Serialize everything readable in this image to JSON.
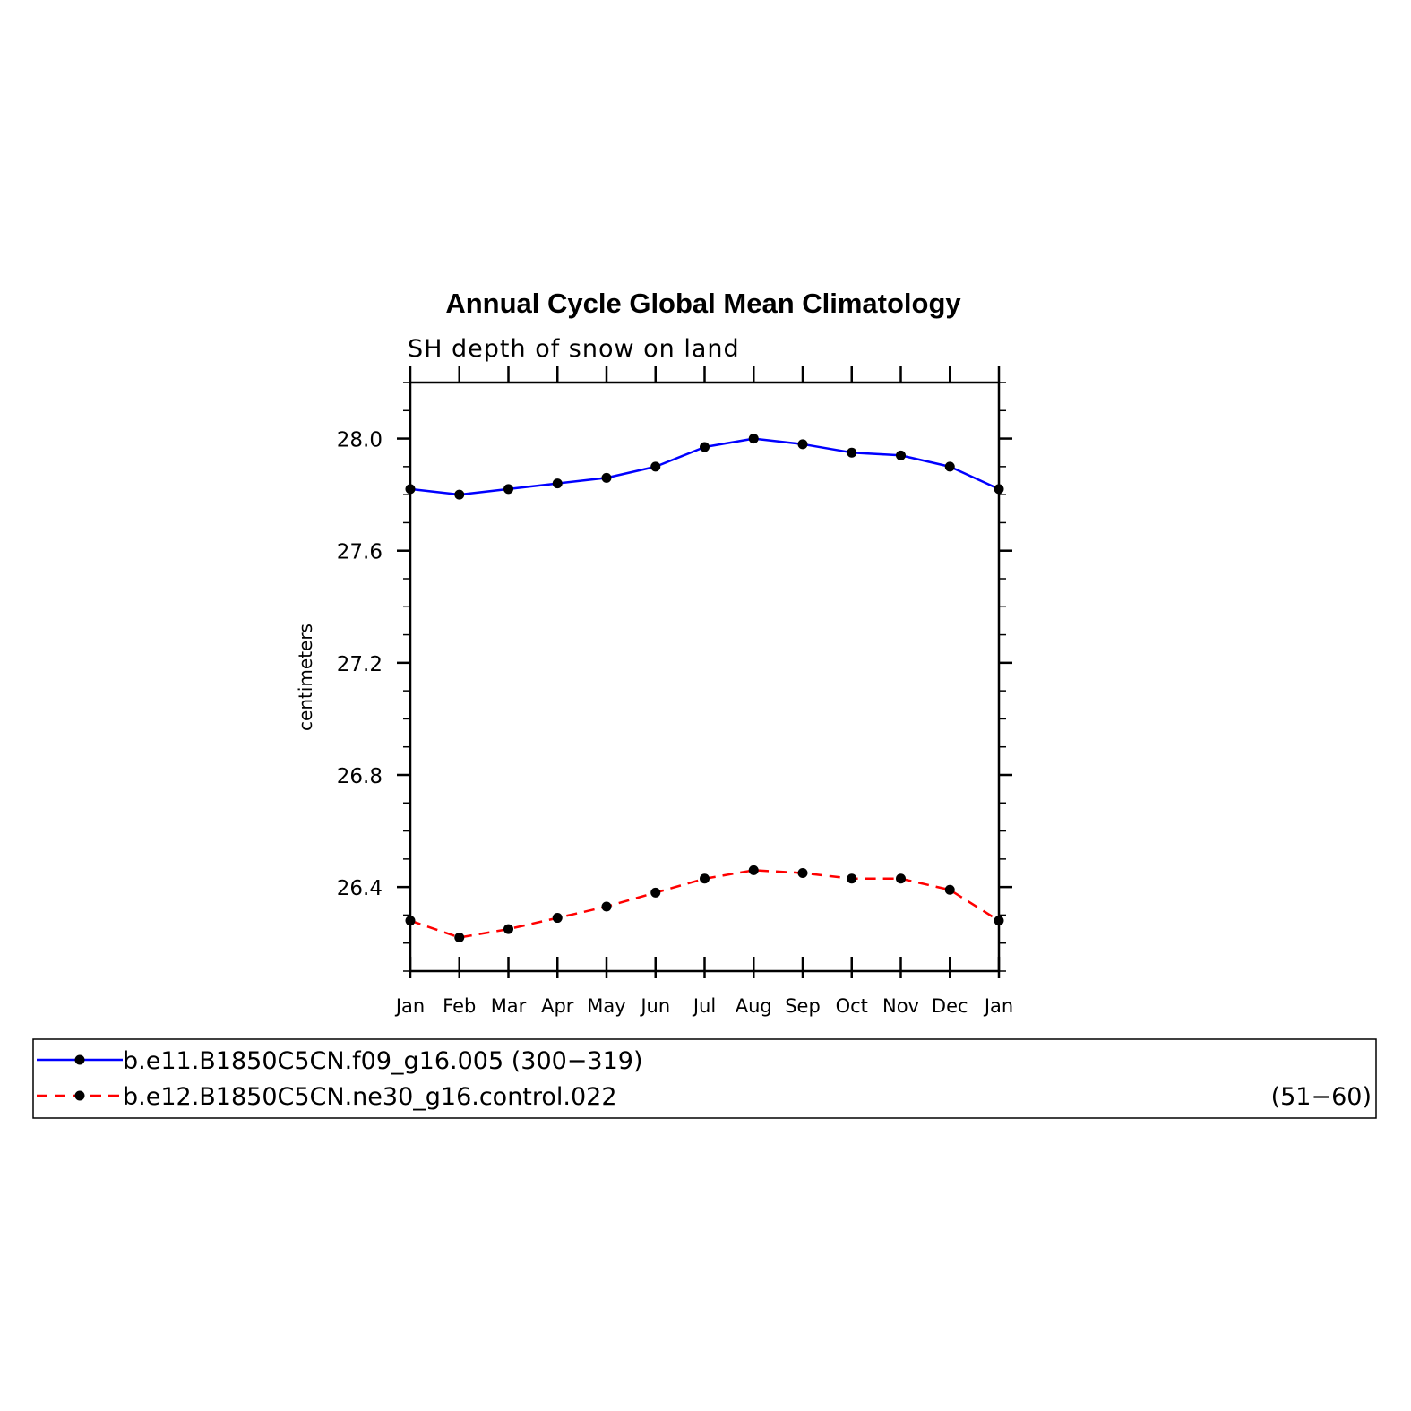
{
  "chart_data": {
    "type": "line",
    "title": "Annual Cycle Global Mean Climatology",
    "subtitle": "SH depth of snow on land",
    "xlabel": "",
    "ylabel": "centimeters",
    "categories": [
      "Jan",
      "Feb",
      "Mar",
      "Apr",
      "May",
      "Jun",
      "Jul",
      "Aug",
      "Sep",
      "Oct",
      "Nov",
      "Dec",
      "Jan"
    ],
    "ylim": [
      26.1,
      28.2
    ],
    "yticks": [
      "26.4",
      "26.8",
      "27.2",
      "27.6",
      "28.0"
    ],
    "grid": false,
    "legend_position": "bottom",
    "series": [
      {
        "name": "b.e11.B1850C5CN.f09_g16.005 (300−319)",
        "color": "#0000ff",
        "line_style": "solid",
        "values": [
          27.82,
          27.8,
          27.82,
          27.84,
          27.86,
          27.9,
          27.97,
          28.0,
          27.98,
          27.95,
          27.94,
          27.9,
          27.82
        ]
      },
      {
        "name": "b.e12.B1850C5CN.ne30_g16.control.022",
        "name_suffix": "(51−60)",
        "color": "#ff0000",
        "line_style": "dashed",
        "values": [
          26.28,
          26.22,
          26.25,
          26.29,
          26.33,
          26.38,
          26.43,
          26.46,
          26.45,
          26.43,
          26.43,
          26.39,
          26.28
        ]
      }
    ]
  }
}
